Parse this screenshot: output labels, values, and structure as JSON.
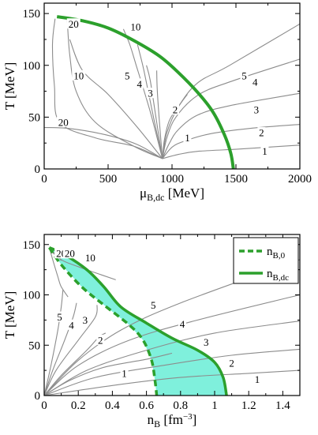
{
  "chart_data": [
    {
      "type": "line",
      "xlabel_main": "μ",
      "xlabel_sub": "B,dc",
      "xlabel_unit": "[MeV]",
      "ylabel": "T [MeV]",
      "xlim": [
        0,
        2000
      ],
      "ylim": [
        0,
        160
      ],
      "xticks": [
        0,
        500,
        1000,
        1500,
        2000
      ],
      "yticks": [
        0,
        50,
        100,
        150
      ],
      "xtick_labels": [
        "0",
        "500",
        "1000",
        "1500",
        "2000"
      ],
      "ytick_labels": [
        "0",
        "50",
        "100",
        "150"
      ],
      "colors": {
        "phase": "#2ca02c",
        "contour": "#8c8c8c"
      },
      "series": [
        {
          "role": "phase-boundary",
          "points": [
            [
              100,
              147
            ],
            [
              300,
              143
            ],
            [
              500,
              136
            ],
            [
              700,
              124
            ],
            [
              900,
              109
            ],
            [
              1050,
              93
            ],
            [
              1200,
              74
            ],
            [
              1320,
              55
            ],
            [
              1410,
              33
            ],
            [
              1460,
              15
            ],
            [
              1480,
              0
            ]
          ]
        },
        {
          "label": "1",
          "points": [
            [
              925,
              10
            ],
            [
              1050,
              14
            ],
            [
              1200,
              17
            ],
            [
              1500,
              19
            ],
            [
              1750,
              21
            ],
            [
              2000,
              23
            ]
          ],
          "lx": 1725,
          "ly": 17
        },
        {
          "label": "2",
          "points": [
            [
              925,
              10
            ],
            [
              1000,
              21
            ],
            [
              1100,
              27
            ],
            [
              1300,
              34
            ],
            [
              1600,
              39
            ],
            [
              2000,
              43
            ]
          ],
          "lx": 1700,
          "ly": 35
        },
        {
          "label": "3",
          "points": [
            [
              925,
              10
            ],
            [
              980,
              25
            ],
            [
              1050,
              38
            ],
            [
              1200,
              52
            ],
            [
              1450,
              61
            ],
            [
              2000,
              73
            ]
          ],
          "lx": 1660,
          "ly": 57
        },
        {
          "label": "4",
          "points": [
            [
              925,
              10
            ],
            [
              960,
              30
            ],
            [
              1030,
              50
            ],
            [
              1200,
              71
            ],
            [
              1450,
              84
            ],
            [
              2000,
              106
            ]
          ],
          "lx": 1650,
          "ly": 84
        },
        {
          "label": "5",
          "points": [
            [
              925,
              10
            ],
            [
              960,
              35
            ],
            [
              1050,
              60
            ],
            [
              1200,
              83
            ],
            [
              1450,
              100
            ],
            [
              2000,
              140
            ]
          ],
          "lx": 1565,
          "ly": 90
        },
        {
          "label": "1",
          "points": [
            [
              925,
              10
            ],
            [
              720,
              24
            ],
            [
              480,
              33
            ],
            [
              200,
              39
            ],
            [
              0,
              40
            ]
          ],
          "lx": 1120,
          "ly": 30
        },
        {
          "label": "2",
          "points": [
            [
              925,
              10
            ],
            [
              940,
              28
            ],
            [
              980,
              47
            ],
            [
              1060,
              62
            ],
            [
              1120,
              72
            ]
          ],
          "lx": 1025,
          "ly": 57
        },
        {
          "label": "3",
          "points": [
            [
              925,
              10
            ],
            [
              905,
              40
            ],
            [
              885,
              75
            ],
            [
              880,
              95
            ]
          ],
          "lx": 830,
          "ly": 73
        },
        {
          "label": "4",
          "points": [
            [
              925,
              10
            ],
            [
              880,
              45
            ],
            [
              830,
              85
            ],
            [
              800,
              100
            ]
          ],
          "lx": 745,
          "ly": 82
        },
        {
          "label": "5",
          "points": [
            [
              925,
              10
            ],
            [
              855,
              50
            ],
            [
              780,
              95
            ],
            [
              730,
              120
            ]
          ],
          "lx": 650,
          "ly": 90
        },
        {
          "label": "10",
          "points": [
            [
              925,
              10
            ],
            [
              830,
              55
            ],
            [
              720,
              100
            ],
            [
              670,
              120
            ],
            [
              620,
              135
            ]
          ],
          "lx": 715,
          "ly": 137
        },
        {
          "label": "10",
          "points": [
            [
              925,
              10
            ],
            [
              730,
              40
            ],
            [
              500,
              72
            ],
            [
              300,
              95
            ],
            [
              200,
              125
            ]
          ],
          "lx": 270,
          "ly": 90
        },
        {
          "label": "20",
          "points": [
            [
              925,
              10
            ],
            [
              700,
              22
            ],
            [
              400,
              30
            ],
            [
              120,
              45
            ],
            [
              80,
              80
            ],
            [
              65,
              120
            ],
            [
              85,
              145
            ]
          ],
          "lx": 150,
          "ly": 45
        },
        {
          "label": "20",
          "points": [
            [
              180,
              145
            ],
            [
              200,
              110
            ],
            [
              250,
              75
            ],
            [
              400,
              45
            ],
            [
              700,
              22
            ],
            [
              925,
              10
            ]
          ],
          "lx": 230,
          "ly": 140
        }
      ]
    },
    {
      "type": "line",
      "xlabel_main": "n",
      "xlabel_sub": "B",
      "xlabel_unit": "[fm",
      "xlabel_sup": "−3",
      "xlabel_close": "]",
      "ylabel": "T [MeV]",
      "xlim": [
        0,
        1.5
      ],
      "ylim": [
        0,
        160
      ],
      "xticks": [
        0,
        0.2,
        0.4,
        0.6,
        0.8,
        1.0,
        1.2,
        1.4
      ],
      "yticks": [
        0,
        50,
        100,
        150
      ],
      "xtick_labels": [
        "0",
        "0.2",
        "0.4",
        "0.6",
        "0.8",
        "1",
        "1.2",
        "1.4"
      ],
      "ytick_labels": [
        "0",
        "50",
        "100",
        "150"
      ],
      "colors": {
        "phase": "#2ca02c",
        "fill": "#7ff0dc",
        "contour": "#8c8c8c"
      },
      "legend": {
        "entries": [
          {
            "main": "n",
            "sub": "B,0",
            "style": "dashed"
          },
          {
            "main": "n",
            "sub": "B,dc",
            "style": "solid"
          }
        ],
        "position": "top-right"
      },
      "dashed_boundary": [
        [
          0.03,
          147
        ],
        [
          0.1,
          130
        ],
        [
          0.22,
          108
        ],
        [
          0.35,
          90
        ],
        [
          0.5,
          70
        ],
        [
          0.58,
          55
        ],
        [
          0.63,
          35
        ],
        [
          0.65,
          15
        ],
        [
          0.66,
          0
        ]
      ],
      "solid_boundary": [
        [
          0.03,
          147
        ],
        [
          0.12,
          140
        ],
        [
          0.25,
          125
        ],
        [
          0.35,
          108
        ],
        [
          0.45,
          88
        ],
        [
          0.6,
          72
        ],
        [
          0.75,
          57
        ],
        [
          0.9,
          45
        ],
        [
          1.0,
          33
        ],
        [
          1.05,
          18
        ],
        [
          1.07,
          0
        ]
      ],
      "series": [
        {
          "label": "1",
          "points": [
            [
              0,
              0
            ],
            [
              0.4,
              10
            ],
            [
              0.8,
              18
            ],
            [
              1.2,
              22
            ],
            [
              1.5,
              25
            ]
          ],
          "lx": 1.25,
          "ly": 16
        },
        {
          "label": "2",
          "points": [
            [
              0,
              0
            ],
            [
              0.3,
              18
            ],
            [
              0.7,
              30
            ],
            [
              1.1,
              40
            ],
            [
              1.5,
              46
            ]
          ],
          "lx": 1.1,
          "ly": 32
        },
        {
          "label": "3",
          "points": [
            [
              0,
              0
            ],
            [
              0.25,
              25
            ],
            [
              0.6,
              45
            ],
            [
              1.0,
              62
            ],
            [
              1.5,
              74
            ]
          ],
          "lx": 0.95,
          "ly": 53
        },
        {
          "label": "4",
          "points": [
            [
              0,
              0
            ],
            [
              0.2,
              30
            ],
            [
              0.5,
              55
            ],
            [
              0.9,
              75
            ],
            [
              1.5,
              100
            ]
          ],
          "lx": 0.81,
          "ly": 71
        },
        {
          "label": "5",
          "points": [
            [
              0,
              0
            ],
            [
              0.2,
              35
            ],
            [
              0.45,
              65
            ],
            [
              0.8,
              92
            ],
            [
              1.5,
              135
            ]
          ],
          "lx": 0.64,
          "ly": 90
        },
        {
          "label": "1",
          "points": [
            [
              0,
              0
            ],
            [
              0.15,
              15
            ],
            [
              0.35,
              28
            ],
            [
              0.6,
              36
            ],
            [
              0.75,
              42
            ]
          ],
          "lx": 0.47,
          "ly": 22
        },
        {
          "label": "2",
          "points": [
            [
              0,
              0
            ],
            [
              0.1,
              20
            ],
            [
              0.25,
              45
            ],
            [
              0.32,
              58
            ],
            [
              0.36,
              62
            ]
          ],
          "lx": 0.33,
          "ly": 55
        },
        {
          "label": "3",
          "points": [
            [
              0,
              0
            ],
            [
              0.07,
              25
            ],
            [
              0.2,
              55
            ],
            [
              0.3,
              78
            ],
            [
              0.31,
              90
            ]
          ],
          "lx": 0.24,
          "ly": 75
        },
        {
          "label": "4",
          "points": [
            [
              0,
              0
            ],
            [
              0.05,
              25
            ],
            [
              0.12,
              55
            ],
            [
              0.17,
              78
            ],
            [
              0.19,
              92
            ]
          ],
          "lx": 0.16,
          "ly": 70
        },
        {
          "label": "5",
          "points": [
            [
              0,
              0
            ],
            [
              0.04,
              30
            ],
            [
              0.08,
              65
            ],
            [
              0.1,
              88
            ],
            [
              0.11,
              105
            ]
          ],
          "lx": 0.09,
          "ly": 78
        },
        {
          "label": "10",
          "points": [
            [
              0.03,
              147
            ],
            [
              0.1,
              135
            ],
            [
              0.2,
              128
            ],
            [
              0.3,
              122
            ],
            [
              0.42,
              115
            ]
          ],
          "lx": 0.27,
          "ly": 137
        },
        {
          "label": "20",
          "points": [
            [
              0.03,
              147
            ],
            [
              0.05,
              135
            ],
            [
              0.08,
              118
            ],
            [
              0.1,
              108
            ],
            [
              0.14,
              98
            ]
          ],
          "lx": 0.1,
          "ly": 141
        },
        {
          "label": "20",
          "points": [
            [
              0.03,
              147
            ],
            [
              0.05,
              142
            ],
            [
              0.08,
              138
            ],
            [
              0.1,
              134
            ]
          ],
          "lx": 0.15,
          "ly": 141
        }
      ]
    }
  ]
}
